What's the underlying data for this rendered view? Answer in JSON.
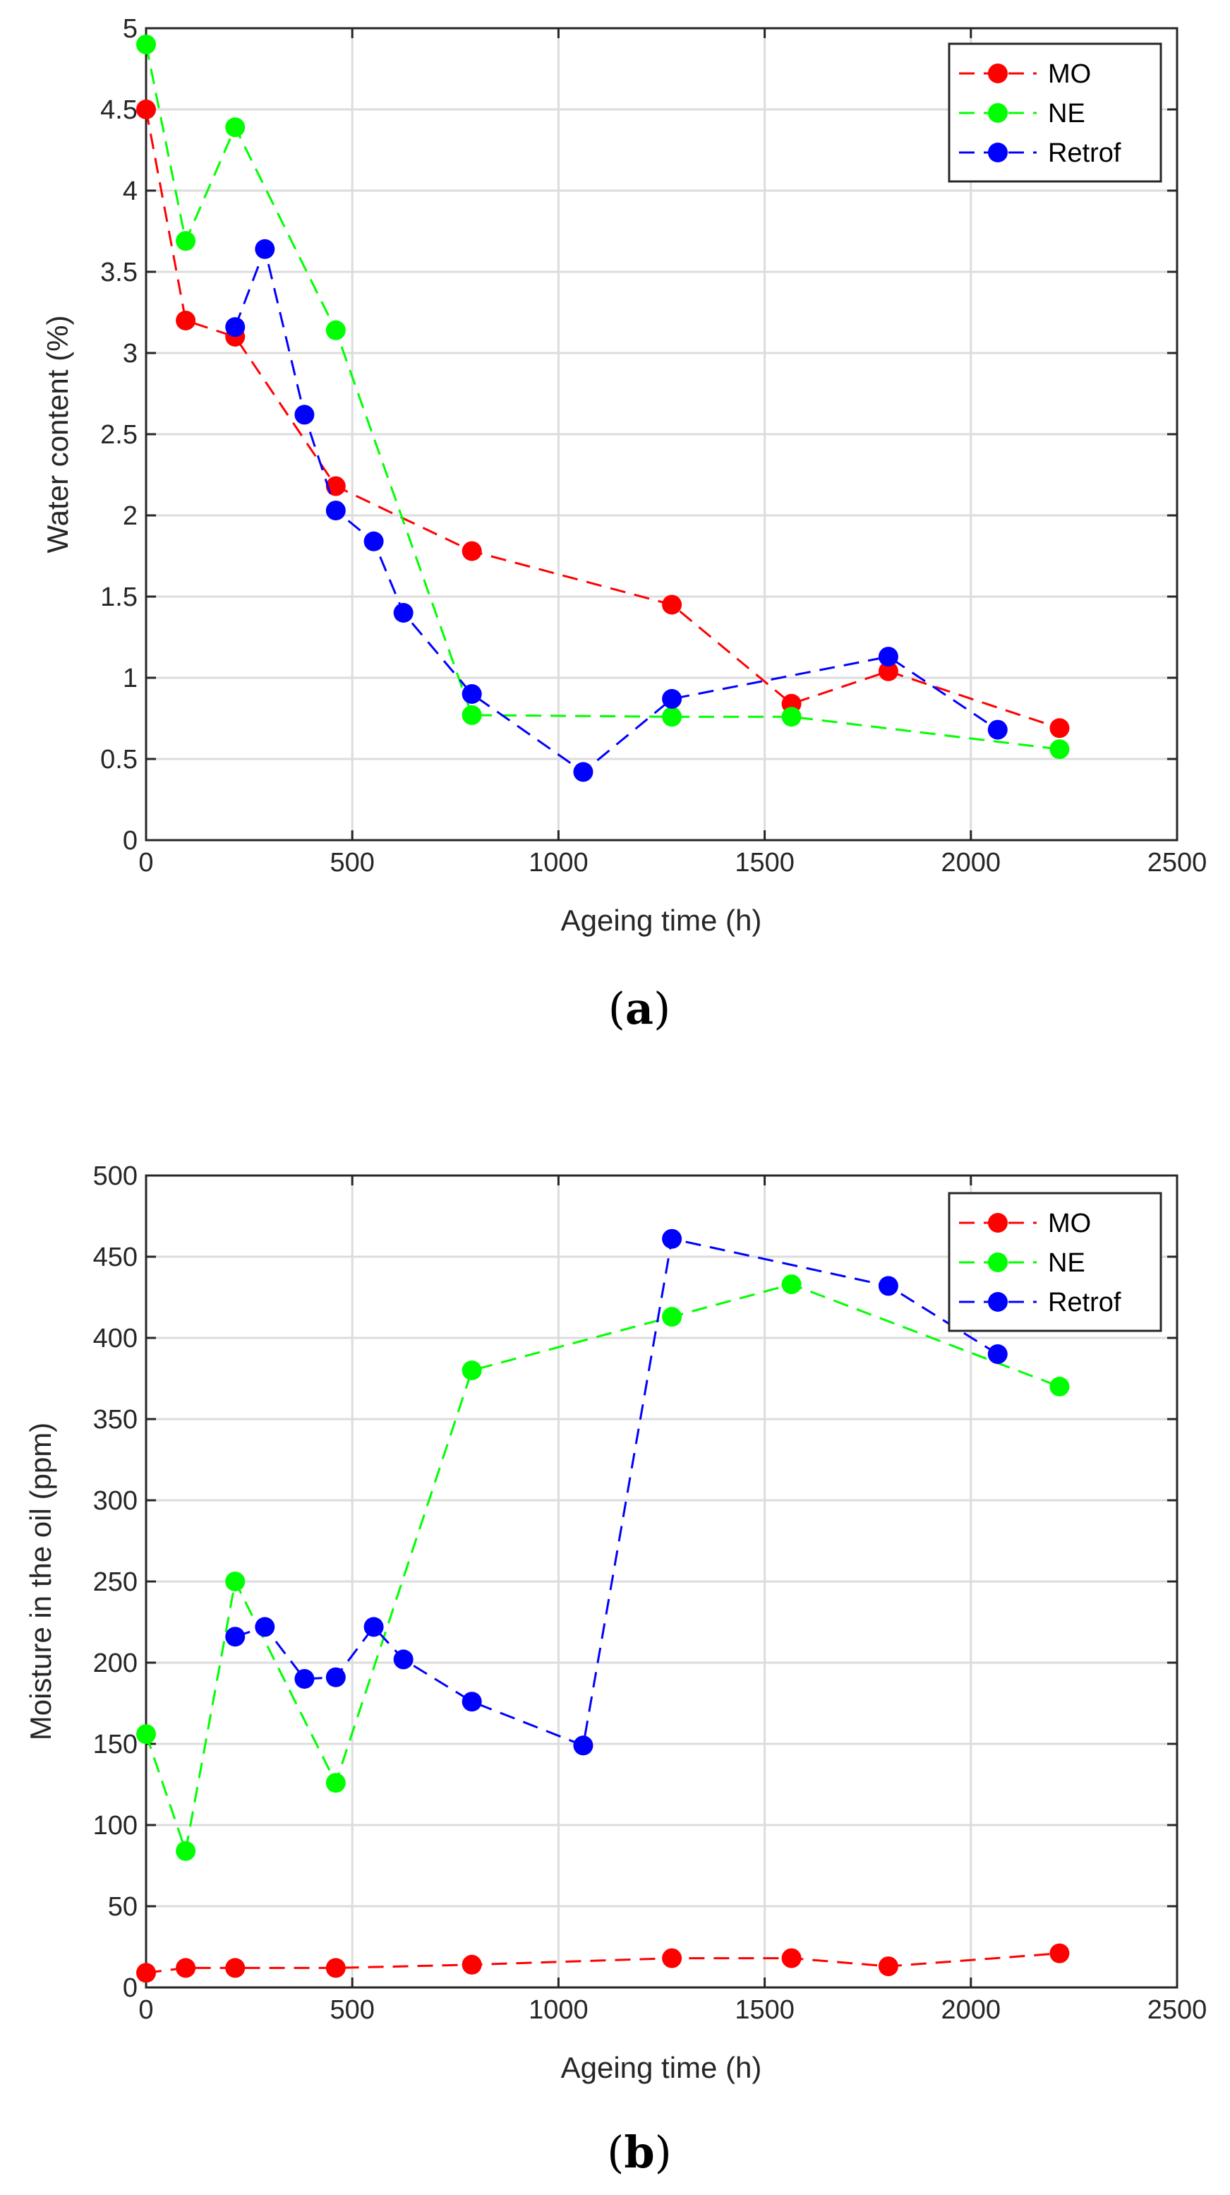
{
  "colors": {
    "MO": "#ff0000",
    "NE": "#00ff00",
    "Retrof": "#0000ff",
    "axis": "#262626",
    "grid": "#dcdcdc"
  },
  "chart_data": [
    {
      "id": "a",
      "type": "line",
      "panel_label": "a",
      "xlabel": "Ageing time (h)",
      "ylabel": "Water content (%)",
      "xlim": [
        0,
        2500
      ],
      "ylim": [
        0,
        5
      ],
      "xticks": [
        0,
        500,
        1000,
        1500,
        2000,
        2500
      ],
      "yticks": [
        0,
        0.5,
        1,
        1.5,
        2,
        2.5,
        3,
        3.5,
        4,
        4.5,
        5
      ],
      "ytick_labels": [
        "0",
        "0.5",
        "1",
        "1.5",
        "2",
        "2.5",
        "3",
        "3.5",
        "4",
        "4.5",
        "5"
      ],
      "grid": true,
      "legend": "top-right",
      "series": [
        {
          "name": "MO",
          "color_key": "MO",
          "x": [
            0,
            96,
            216,
            460,
            790,
            1275,
            1565,
            1800,
            2215
          ],
          "y": [
            4.5,
            3.2,
            3.1,
            2.18,
            1.78,
            1.45,
            0.84,
            1.04,
            0.69
          ]
        },
        {
          "name": "NE",
          "color_key": "NE",
          "x": [
            0,
            96,
            216,
            460,
            790,
            1275,
            1565,
            2215
          ],
          "y": [
            4.9,
            3.69,
            4.39,
            3.14,
            0.77,
            0.76,
            0.76,
            0.56
          ]
        },
        {
          "name": "Retrof",
          "color_key": "Retrof",
          "x": [
            216,
            288,
            384,
            460,
            552,
            624,
            790,
            1060,
            1275,
            1800,
            2065
          ],
          "y": [
            3.16,
            3.64,
            2.62,
            2.03,
            1.84,
            1.4,
            0.9,
            0.42,
            0.87,
            1.13,
            0.68
          ]
        }
      ]
    },
    {
      "id": "b",
      "type": "line",
      "panel_label": "b",
      "xlabel": "Ageing time (h)",
      "ylabel": "Moisture in the oil (ppm)",
      "xlim": [
        0,
        2500
      ],
      "ylim": [
        0,
        500
      ],
      "xticks": [
        0,
        500,
        1000,
        1500,
        2000,
        2500
      ],
      "yticks": [
        0,
        50,
        100,
        150,
        200,
        250,
        300,
        350,
        400,
        450,
        500
      ],
      "ytick_labels": [
        "0",
        "50",
        "100",
        "150",
        "200",
        "250",
        "300",
        "350",
        "400",
        "450",
        "500"
      ],
      "grid": true,
      "legend": "top-right",
      "series": [
        {
          "name": "MO",
          "color_key": "MO",
          "x": [
            0,
            96,
            216,
            460,
            790,
            1275,
            1565,
            1800,
            2215
          ],
          "y": [
            9,
            12,
            12,
            12,
            14,
            18,
            18,
            13,
            21
          ]
        },
        {
          "name": "NE",
          "color_key": "NE",
          "x": [
            0,
            96,
            216,
            460,
            790,
            1275,
            1565,
            2215
          ],
          "y": [
            156,
            84,
            250,
            126,
            380,
            413,
            433,
            370
          ]
        },
        {
          "name": "Retrof",
          "color_key": "Retrof",
          "x": [
            216,
            288,
            384,
            460,
            552,
            624,
            790,
            1060,
            1275,
            1800,
            2065
          ],
          "y": [
            216,
            222,
            190,
            191,
            222,
            202,
            176,
            149,
            461,
            432,
            390
          ]
        }
      ]
    }
  ]
}
